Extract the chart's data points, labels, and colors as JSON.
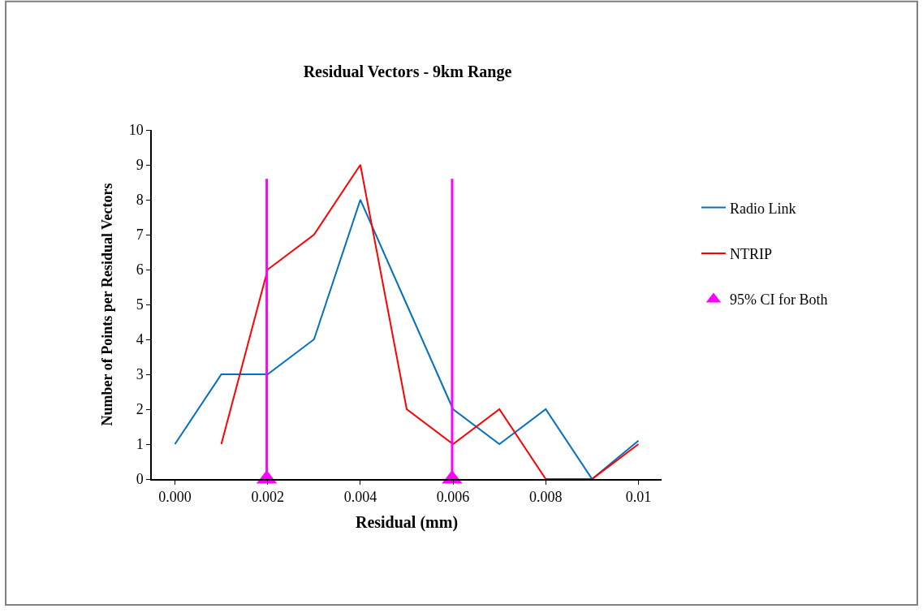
{
  "chart_data": {
    "type": "line",
    "title": "Residual Vectors - 9km Range",
    "xlabel": "Residual (mm)",
    "ylabel": "Number of Points per Residual Vectors",
    "x": [
      0.0,
      0.001,
      0.002,
      0.003,
      0.004,
      0.005,
      0.006,
      0.007,
      0.008,
      0.009,
      0.01
    ],
    "series": [
      {
        "name": "Radio Link",
        "color": "#0070c0",
        "values": [
          1,
          3,
          3,
          4,
          8,
          5,
          2,
          1,
          2,
          0,
          1.1
        ]
      },
      {
        "name": "NTRIP",
        "color": "#ff0000",
        "values": [
          null,
          1,
          6,
          7,
          9,
          2,
          1,
          2,
          0,
          0,
          1
        ]
      },
      {
        "name": "95% CI for Both",
        "type": "scatter",
        "color": "#ff00ff",
        "marker": "triangle",
        "x": [
          0.00198,
          0.00598
        ],
        "values": [
          0,
          0
        ]
      }
    ],
    "ref_lines": [
      {
        "axis": "x",
        "value": 0.00198,
        "color": "#ff00ff"
      },
      {
        "axis": "x",
        "value": 0.00598,
        "color": "#ff00ff"
      }
    ],
    "xlim": [
      -0.0005,
      0.0105
    ],
    "xticks": [
      {
        "value": 0,
        "label": "0.000"
      },
      {
        "value": 0.002,
        "label": "0.002"
      },
      {
        "value": 0.004,
        "label": "0.004"
      },
      {
        "value": 0.006,
        "label": "0.006"
      },
      {
        "value": 0.008,
        "label": "0.008"
      },
      0.01
    ],
    "ylim": [
      0,
      10
    ],
    "yticks": [
      0,
      1,
      2,
      3,
      4,
      5,
      6,
      7,
      8,
      9,
      10
    ],
    "legend": "right",
    "marker": "none"
  }
}
